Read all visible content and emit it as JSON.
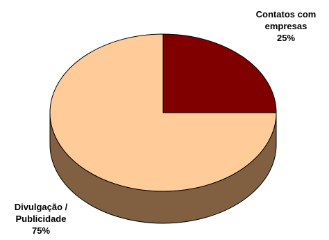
{
  "chart_data": {
    "type": "pie",
    "style": "3d",
    "title": "",
    "slices": [
      {
        "label_lines": [
          "Contatos com",
          "empresas"
        ],
        "value": 25,
        "value_label": "25%",
        "color": "#800000",
        "side_color": "#400000"
      },
      {
        "label_lines": [
          "Divulgação /",
          "Publicidade"
        ],
        "value": 75,
        "value_label": "75%",
        "color": "#FFCC99",
        "side_color": "#806040"
      }
    ],
    "legend": "none",
    "outline_color": "#000000"
  }
}
